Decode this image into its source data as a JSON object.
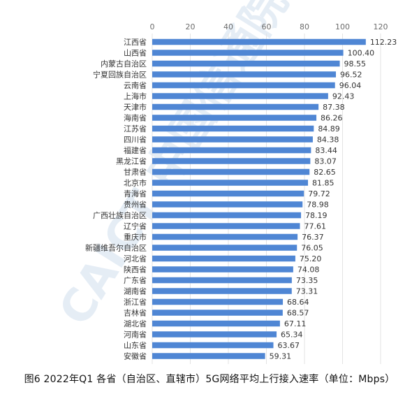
{
  "caption": "图6 2022年Q1 各省（自治区、直辖市）5G网络平均上行接入速率（单位：Mbps）",
  "watermark_text": "CAICT 中国信通院",
  "colors": {
    "bar": "#4f86d4",
    "grid": "#e3e3e3",
    "text": "#333333",
    "watermark": "#2f6fb6"
  },
  "chart_data": {
    "type": "bar",
    "orientation": "horizontal",
    "categories": [
      "江西省",
      "山西省",
      "内蒙古自治区",
      "宁夏回族自治区",
      "云南省",
      "上海市",
      "天津市",
      "海南省",
      "江苏省",
      "四川省",
      "福建省",
      "黑龙江省",
      "甘肃省",
      "北京市",
      "青海省",
      "贵州省",
      "广西壮族自治区",
      "辽宁省",
      "重庆市",
      "新疆维吾尔自治区",
      "河北省",
      "陕西省",
      "广东省",
      "湖南省",
      "浙江省",
      "吉林省",
      "湖北省",
      "河南省",
      "山东省",
      "安徽省"
    ],
    "values": [
      112.23,
      100.4,
      98.55,
      96.52,
      96.04,
      92.43,
      87.38,
      86.26,
      84.89,
      84.38,
      83.44,
      83.07,
      82.65,
      81.85,
      79.72,
      78.98,
      78.19,
      77.61,
      76.37,
      76.05,
      75.2,
      74.08,
      73.35,
      73.31,
      68.64,
      68.57,
      67.11,
      65.34,
      63.67,
      59.31
    ],
    "value_labels": [
      "112.23",
      "100.40",
      "98.55",
      "96.52",
      "96.04",
      "92.43",
      "87.38",
      "86.26",
      "84.89",
      "84.38",
      "83.44",
      "83.07",
      "82.65",
      "81.85",
      "79.72",
      "78.98",
      "78.19",
      "77.61",
      "76.37",
      "76.05",
      "75.20",
      "74.08",
      "73.35",
      "73.31",
      "68.64",
      "68.57",
      "67.11",
      "65.34",
      "63.67",
      "59.31"
    ],
    "xticks": [
      "0",
      "20",
      "40",
      "60",
      "80",
      "100",
      "120"
    ],
    "xlim": [
      0,
      120
    ],
    "axis_position": "top",
    "grid": true,
    "title": "",
    "xlabel": "",
    "ylabel": ""
  }
}
